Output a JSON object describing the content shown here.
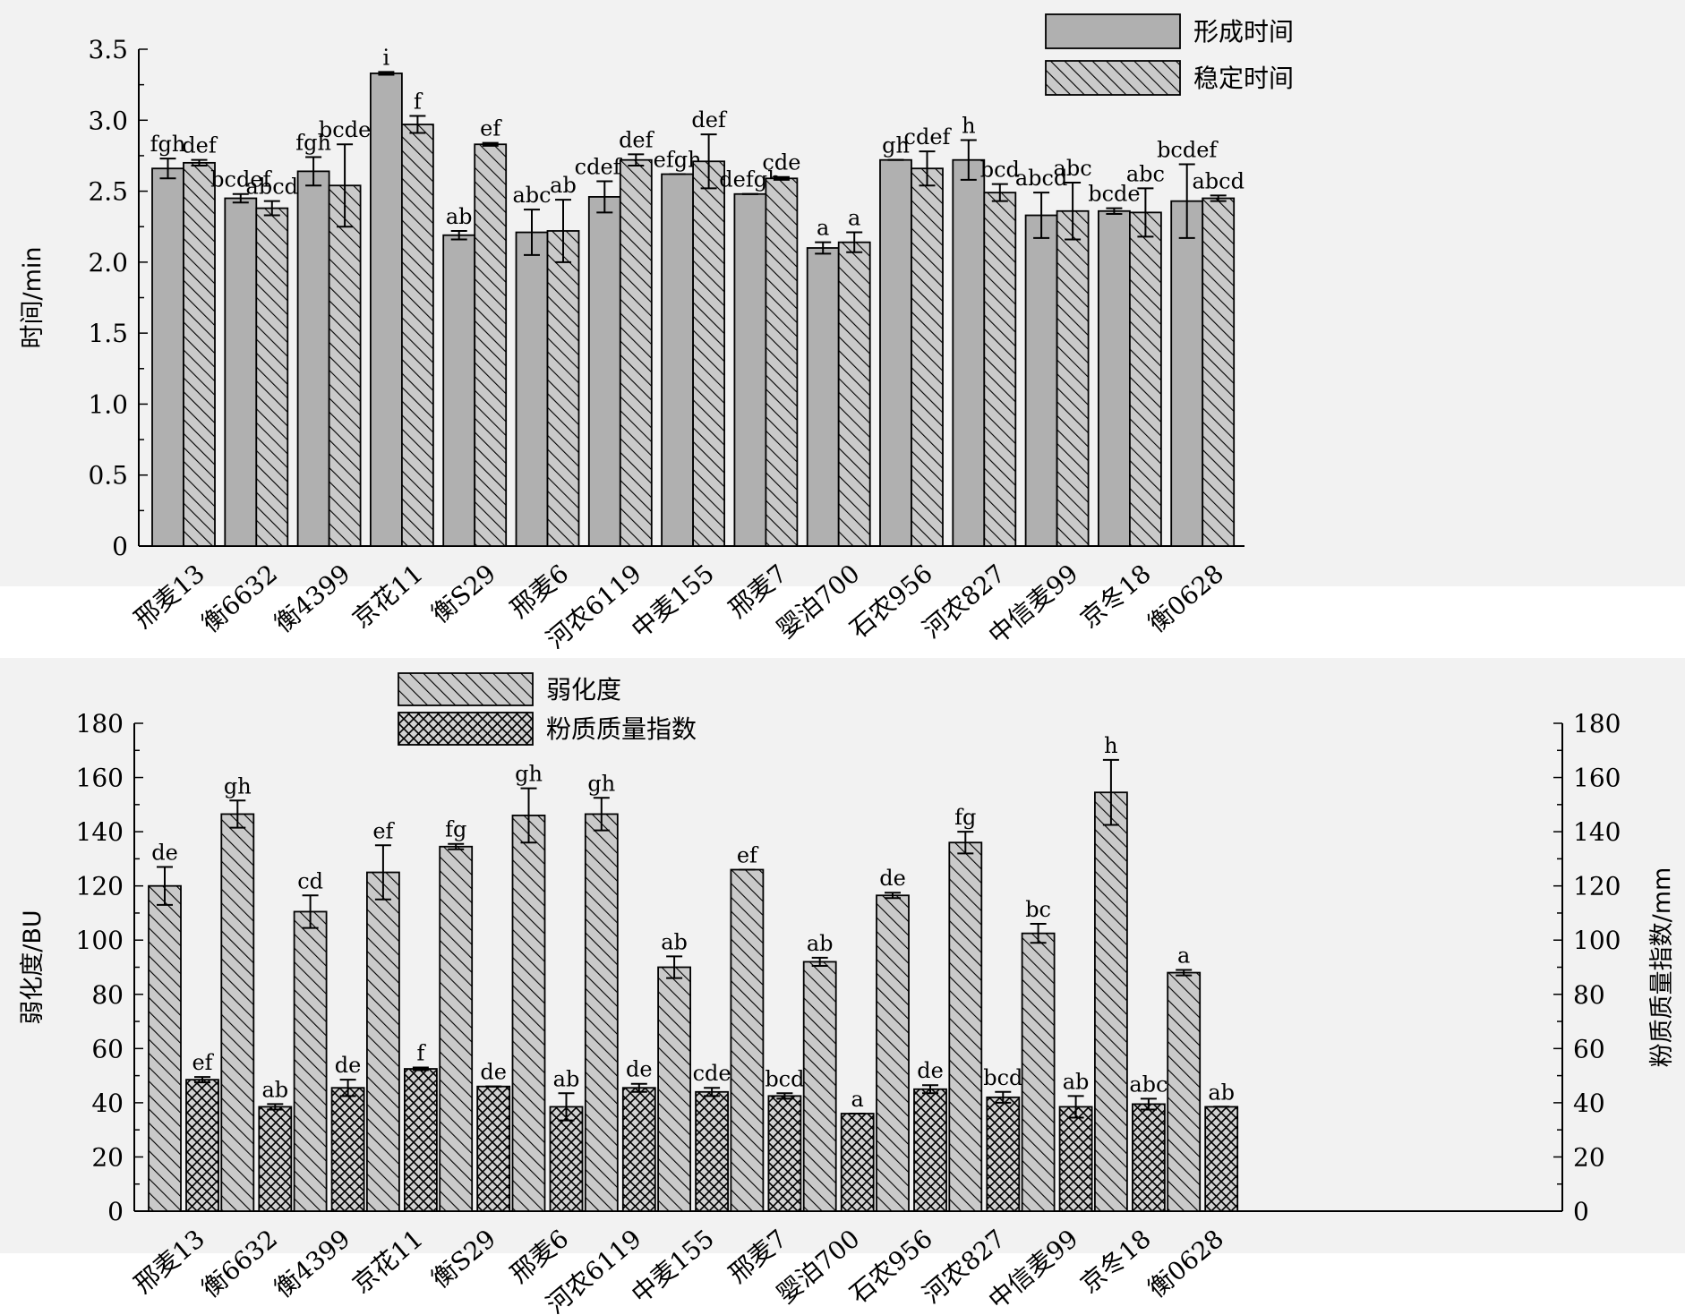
{
  "colors": {
    "bar_fill": "#b0b0b0",
    "hatch_fill": "#c8c8c8",
    "line": "#000000",
    "panel_bg": "#f2f2f2"
  },
  "chart_data": [
    {
      "type": "bar",
      "categories": [
        "邢麦13",
        "衡6632",
        "衡4399",
        "京花11",
        "衡S29",
        "邢麦6",
        "河农6119",
        "中麦155",
        "邢麦7",
        "婴泊700",
        "石农956",
        "河农827",
        "中信麦99",
        "京冬18",
        "衡0628"
      ],
      "ylabel": "时间/min",
      "ylim": [
        0,
        3.5
      ],
      "yticks": [
        "0",
        "0.5",
        "1.0",
        "1.5",
        "2.0",
        "2.5",
        "3.0",
        "3.5"
      ],
      "legend_position": "top-right",
      "series": [
        {
          "name": "形成时间",
          "pattern": "solid",
          "values": [
            2.66,
            2.45,
            2.64,
            3.33,
            2.19,
            2.21,
            2.46,
            2.62,
            2.48,
            2.1,
            2.72,
            2.72,
            2.33,
            2.36,
            2.43
          ],
          "errors": [
            0.07,
            0.03,
            0.1,
            0.01,
            0.03,
            0.16,
            0.11,
            0.0,
            0.0,
            0.04,
            0.0,
            0.14,
            0.16,
            0.02,
            0.26
          ],
          "labels": [
            "fgh",
            "bcdef",
            "fgh",
            "i",
            "ab",
            "abc",
            "cdefg",
            "efgh",
            "defgh",
            "a",
            "gh",
            "h",
            "abcd",
            "bcde",
            "bcdef"
          ]
        },
        {
          "name": "稳定时间",
          "pattern": "hatch",
          "values": [
            2.7,
            2.38,
            2.54,
            2.97,
            2.83,
            2.22,
            2.72,
            2.71,
            2.59,
            2.14,
            2.66,
            2.49,
            2.36,
            2.35,
            2.45
          ],
          "errors": [
            0.02,
            0.05,
            0.29,
            0.06,
            0.01,
            0.22,
            0.04,
            0.19,
            0.01,
            0.07,
            0.12,
            0.06,
            0.2,
            0.17,
            0.02
          ],
          "labels": [
            "def",
            "abcd",
            "bcde",
            "f",
            "ef",
            "ab",
            "def",
            "def",
            "cde",
            "a",
            "cdef",
            "bcd",
            "abc",
            "abc",
            "abcd"
          ]
        }
      ]
    },
    {
      "type": "bar",
      "categories": [
        "邢麦13",
        "衡6632",
        "衡4399",
        "京花11",
        "衡S29",
        "邢麦6",
        "河农6119",
        "中麦155",
        "邢麦7",
        "婴泊700",
        "石农956",
        "河农827",
        "中信麦99",
        "京冬18",
        "衡0628"
      ],
      "ylabel": "弱化度/BU",
      "ylabel_right": "粉质质量指数/mm",
      "ylim": [
        0,
        180
      ],
      "yticks": [
        "0",
        "20",
        "40",
        "60",
        "80",
        "100",
        "120",
        "140",
        "160",
        "180"
      ],
      "legend_position": "top-left",
      "series": [
        {
          "name": "弱化度",
          "pattern": "hatch",
          "values": [
            120,
            146.5,
            110.5,
            125,
            134.5,
            146,
            146.5,
            90,
            126,
            92,
            116.5,
            136,
            102.5,
            154.5,
            88
          ],
          "errors": [
            7,
            5,
            6,
            10,
            1,
            10,
            6,
            4,
            0,
            1.5,
            1,
            4,
            3.5,
            12,
            1
          ],
          "labels": [
            "de",
            "gh",
            "cd",
            "ef",
            "fg",
            "gh",
            "gh",
            "ab",
            "ef",
            "ab",
            "de",
            "fg",
            "bc",
            "h",
            "a"
          ]
        },
        {
          "name": "粉质质量指数",
          "pattern": "crosshatch",
          "values": [
            48.5,
            38.5,
            45.5,
            52.5,
            46,
            38.5,
            45.5,
            44,
            42.5,
            36,
            45,
            42,
            38.5,
            39.5,
            38.5
          ],
          "errors": [
            1,
            1,
            3,
            0.5,
            0,
            5,
            1.5,
            1.5,
            1,
            0,
            1.5,
            2,
            4,
            2,
            0
          ],
          "labels": [
            "ef",
            "ab",
            "de",
            "f",
            "de",
            "ab",
            "de",
            "cde",
            "bcd",
            "a",
            "de",
            "bcd",
            "ab",
            "abc",
            "ab"
          ]
        }
      ]
    }
  ]
}
